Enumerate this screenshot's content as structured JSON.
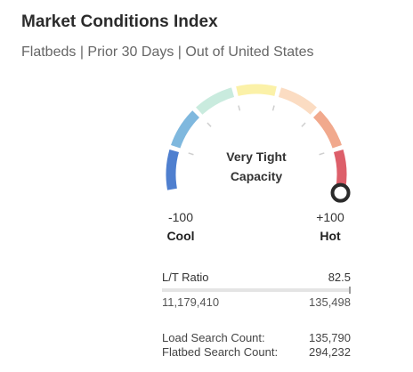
{
  "header": {
    "title": "Market Conditions Index",
    "subtitle": "Flatbeds | Prior 30 Days | Out of United States"
  },
  "gauge": {
    "min": -100,
    "max": 100,
    "value": 100,
    "status_line1": "Very Tight",
    "status_line2": "Capacity",
    "min_label": "-100",
    "max_label": "+100",
    "min_word": "Cool",
    "max_word": "Hot",
    "segment_colors": [
      "#4f7fcf",
      "#7fb8de",
      "#c9ebde",
      "#fbf1a8",
      "#fbdcc2",
      "#f1a98d",
      "#dd5f6a"
    ],
    "indicator_color": "#2b2b2b"
  },
  "ratio": {
    "label": "L/T Ratio",
    "value": "82.5",
    "loads": "11,179,410",
    "trucks": "135,498",
    "fill_fraction": 1.0
  },
  "counts": {
    "load_label": "Load Search Count:",
    "load_value": "135,790",
    "flatbed_label": "Flatbed Search Count:",
    "flatbed_value": "294,232"
  }
}
